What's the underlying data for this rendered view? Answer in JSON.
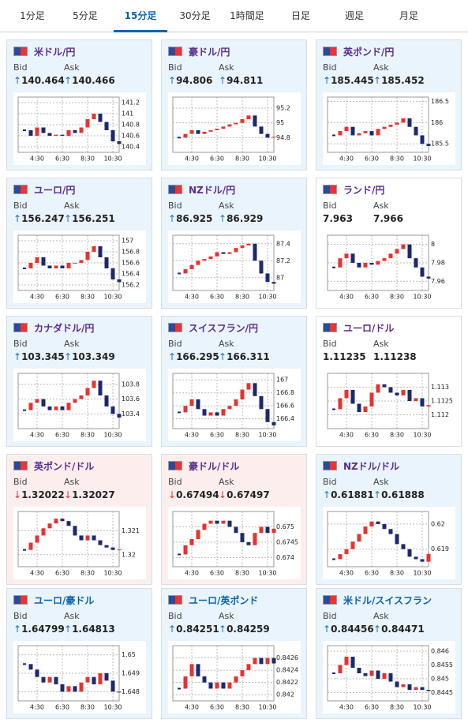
{
  "tabs": [
    "1分足",
    "5分足",
    "15分足",
    "30分足",
    "1時間足",
    "日足",
    "週足",
    "月足"
  ],
  "active_tab": 2,
  "panels": [
    {
      "name": "米ドル/円",
      "name_color": "#5a2d8c",
      "background": "#eaf4fc",
      "arrow": "↑",
      "arrow_color": "#1a6fc4",
      "bid_label": "Bid",
      "ask_label": "Ask",
      "bid": "140.464",
      "ask": "140.466",
      "chart": {
        "type": "candlestick",
        "closes": [
          140.7,
          140.6,
          140.75,
          140.65,
          140.6,
          140.62,
          140.6,
          140.7,
          140.65,
          140.75,
          140.9,
          141.0,
          140.85,
          140.7,
          140.5,
          140.45
        ],
        "ylim": [
          140.3,
          141.3
        ],
        "yticks": [
          141.2,
          141,
          140.8,
          140.6,
          140.4
        ],
        "xlim": [
          -1,
          15
        ],
        "xticks": [
          {
            "value": 2,
            "label": "4:30"
          },
          {
            "value": 6,
            "label": "6:30"
          },
          {
            "value": 10,
            "label": "8:30"
          },
          {
            "value": 14,
            "label": "10:30"
          }
        ]
      }
    },
    {
      "name": "豪ドル/円",
      "name_color": "#5a2d8c",
      "background": "#eaf4fc",
      "arrow": "↑",
      "arrow_color": "#1a6fc4",
      "bid_label": "Bid",
      "ask_label": "Ask",
      "bid": "94.806",
      "ask": "94.811",
      "chart": {
        "type": "candlestick",
        "closes": [
          94.8,
          94.85,
          94.9,
          94.85,
          94.88,
          94.9,
          94.92,
          94.95,
          94.98,
          95.0,
          95.05,
          95.1,
          94.95,
          94.85,
          94.8,
          94.81
        ],
        "ylim": [
          94.6,
          95.35
        ],
        "yticks": [
          95.2,
          95,
          94.8
        ],
        "xlim": [
          -1,
          15
        ],
        "xticks": [
          {
            "value": 2,
            "label": "4:30"
          },
          {
            "value": 6,
            "label": "6:30"
          },
          {
            "value": 10,
            "label": "8:30"
          },
          {
            "value": 14,
            "label": "10:30"
          }
        ]
      }
    },
    {
      "name": "英ポンド/円",
      "name_color": "#5a2d8c",
      "background": "#eaf4fc",
      "arrow": "↑",
      "arrow_color": "#1a6fc4",
      "bid_label": "Bid",
      "ask_label": "Ask",
      "bid": "185.445",
      "ask": "185.452",
      "chart": {
        "type": "candlestick",
        "closes": [
          185.7,
          185.8,
          185.9,
          185.7,
          185.75,
          185.8,
          185.7,
          185.85,
          185.9,
          185.95,
          186.0,
          186.1,
          185.9,
          185.7,
          185.5,
          185.45
        ],
        "ylim": [
          185.3,
          186.6
        ],
        "yticks": [
          186.5,
          186,
          185.5
        ],
        "xlim": [
          -1,
          15
        ],
        "xticks": [
          {
            "value": 2,
            "label": "4:30"
          },
          {
            "value": 6,
            "label": "6:30"
          },
          {
            "value": 10,
            "label": "8:30"
          },
          {
            "value": 14,
            "label": "10:30"
          }
        ]
      }
    },
    {
      "name": "ユーロ/円",
      "name_color": "#5a2d8c",
      "background": "#eaf4fc",
      "arrow": "↑",
      "arrow_color": "#1a6fc4",
      "bid_label": "Bid",
      "ask_label": "Ask",
      "bid": "156.247",
      "ask": "156.251",
      "chart": {
        "type": "candlestick",
        "closes": [
          156.5,
          156.6,
          156.7,
          156.55,
          156.5,
          156.55,
          156.5,
          156.6,
          156.6,
          156.65,
          156.8,
          156.9,
          156.7,
          156.5,
          156.3,
          156.25
        ],
        "ylim": [
          156.1,
          157.1
        ],
        "yticks": [
          157,
          156.8,
          156.6,
          156.4,
          156.2
        ],
        "xlim": [
          -1,
          15
        ],
        "xticks": [
          {
            "value": 2,
            "label": "4:30"
          },
          {
            "value": 6,
            "label": "6:30"
          },
          {
            "value": 10,
            "label": "8:30"
          },
          {
            "value": 14,
            "label": "10:30"
          }
        ]
      }
    },
    {
      "name": "NZドル/円",
      "name_color": "#5a2d8c",
      "background": "#eaf4fc",
      "arrow": "↑",
      "arrow_color": "#1a6fc4",
      "bid_label": "Bid",
      "ask_label": "Ask",
      "bid": "86.925",
      "ask": "86.929",
      "chart": {
        "type": "candlestick",
        "closes": [
          87.05,
          87.1,
          87.15,
          87.2,
          87.22,
          87.25,
          87.3,
          87.28,
          87.3,
          87.35,
          87.38,
          87.4,
          87.2,
          87.05,
          86.95,
          86.93
        ],
        "ylim": [
          86.85,
          87.5
        ],
        "yticks": [
          87.4,
          87.2,
          87
        ],
        "xlim": [
          -1,
          15
        ],
        "xticks": [
          {
            "value": 2,
            "label": "4:30"
          },
          {
            "value": 6,
            "label": "6:30"
          },
          {
            "value": 10,
            "label": "8:30"
          },
          {
            "value": 14,
            "label": "10:30"
          }
        ]
      }
    },
    {
      "name": "ランド/円",
      "name_color": "#5a2d8c",
      "background": "#ffffff",
      "bid_label": "Bid",
      "ask_label": "Ask",
      "bid": "7.963",
      "ask": "7.966",
      "chart": {
        "type": "candlestick",
        "closes": [
          7.975,
          7.985,
          7.99,
          7.98,
          7.975,
          7.98,
          7.978,
          7.982,
          7.985,
          7.99,
          7.995,
          8.0,
          7.985,
          7.975,
          7.965,
          7.963
        ],
        "ylim": [
          7.95,
          8.01
        ],
        "yticks": [
          8,
          7.98,
          7.96
        ],
        "xlim": [
          -1,
          15
        ],
        "xticks": [
          {
            "value": 2,
            "label": "4:30"
          },
          {
            "value": 6,
            "label": "6:30"
          },
          {
            "value": 10,
            "label": "8:30"
          },
          {
            "value": 14,
            "label": "10:30"
          }
        ]
      }
    },
    {
      "name": "カナダドル/円",
      "name_color": "#5a2d8c",
      "background": "#eaf4fc",
      "arrow": "↑",
      "arrow_color": "#1a6fc4",
      "bid_label": "Bid",
      "ask_label": "Ask",
      "bid": "103.345",
      "ask": "103.349",
      "chart": {
        "type": "candlestick",
        "closes": [
          103.45,
          103.55,
          103.6,
          103.5,
          103.45,
          103.5,
          103.45,
          103.55,
          103.6,
          103.65,
          103.75,
          103.85,
          103.65,
          103.5,
          103.4,
          103.35
        ],
        "ylim": [
          103.2,
          103.95
        ],
        "yticks": [
          103.8,
          103.6,
          103.4
        ],
        "xlim": [
          -1,
          15
        ],
        "xticks": [
          {
            "value": 2,
            "label": "4:30"
          },
          {
            "value": 6,
            "label": "6:30"
          },
          {
            "value": 10,
            "label": "8:30"
          },
          {
            "value": 14,
            "label": "10:30"
          }
        ]
      }
    },
    {
      "name": "スイスフラン/円",
      "name_color": "#5a2d8c",
      "background": "#eaf4fc",
      "arrow": "↑",
      "arrow_color": "#1a6fc4",
      "bid_label": "Bid",
      "ask_label": "Ask",
      "bid": "166.295",
      "ask": "166.311",
      "chart": {
        "type": "candlestick",
        "closes": [
          166.5,
          166.6,
          166.7,
          166.55,
          166.45,
          166.5,
          166.45,
          166.55,
          166.6,
          166.7,
          166.85,
          166.95,
          166.75,
          166.55,
          166.35,
          166.3
        ],
        "ylim": [
          166.25,
          167.1
        ],
        "yticks": [
          167,
          166.8,
          166.6,
          166.4
        ],
        "xlim": [
          -1,
          15
        ],
        "xticks": [
          {
            "value": 2,
            "label": "4:30"
          },
          {
            "value": 6,
            "label": "6:30"
          },
          {
            "value": 10,
            "label": "8:30"
          },
          {
            "value": 14,
            "label": "10:30"
          }
        ]
      }
    },
    {
      "name": "ユーロ/ドル",
      "name_color": "#5a2d8c",
      "background": "#ffffff",
      "bid_label": "Bid",
      "ask_label": "Ask",
      "bid": "1.11235",
      "ask": "1.11238",
      "chart": {
        "type": "candlestick",
        "closes": [
          1.1122,
          1.1126,
          1.1129,
          1.1124,
          1.1121,
          1.1123,
          1.1128,
          1.1131,
          1.113,
          1.1128,
          1.1127,
          1.1129,
          1.1125,
          1.1126,
          1.1123,
          1.11235
        ],
        "ylim": [
          1.1115,
          1.1135
        ],
        "yticks": [
          1.113,
          1.1125,
          1.112
        ],
        "xlim": [
          -1,
          15
        ],
        "xticks": [
          {
            "value": 2,
            "label": "4:30"
          },
          {
            "value": 6,
            "label": "6:30"
          },
          {
            "value": 10,
            "label": "8:30"
          },
          {
            "value": 14,
            "label": "10:30"
          }
        ]
      }
    },
    {
      "name": "英ポンド/ドル",
      "name_color": "#5a2d8c",
      "background": "#fdeeee",
      "arrow": "↓",
      "arrow_color": "#d9302b",
      "bid_label": "Bid",
      "ask_label": "Ask",
      "bid": "1.32022",
      "ask": "1.32027",
      "chart": {
        "type": "candlestick",
        "closes": [
          1.3202,
          1.3205,
          1.3208,
          1.3211,
          1.3213,
          1.3215,
          1.3214,
          1.3212,
          1.3208,
          1.3206,
          1.3208,
          1.3206,
          1.3204,
          1.3203,
          1.3202,
          1.32022
        ],
        "ylim": [
          1.3195,
          1.3218
        ],
        "yticks": [
          1.321,
          1.32
        ],
        "xlim": [
          -1,
          15
        ],
        "xticks": [
          {
            "value": 2,
            "label": "4:30"
          },
          {
            "value": 6,
            "label": "6:30"
          },
          {
            "value": 10,
            "label": "8:30"
          },
          {
            "value": 14,
            "label": "10:30"
          }
        ]
      }
    },
    {
      "name": "豪ドル/ドル",
      "name_color": "#5a2d8c",
      "background": "#fdeeee",
      "arrow": "↓",
      "arrow_color": "#d9302b",
      "bid_label": "Bid",
      "ask_label": "Ask",
      "bid": "0.67494",
      "ask": "0.67497",
      "chart": {
        "type": "candlestick",
        "closes": [
          0.6741,
          0.6744,
          0.6746,
          0.6749,
          0.6751,
          0.6752,
          0.6751,
          0.6752,
          0.675,
          0.6748,
          0.6745,
          0.6744,
          0.6748,
          0.675,
          0.6748,
          0.67494
        ],
        "ylim": [
          0.6737,
          0.6755
        ],
        "yticks": [
          0.675,
          0.6745,
          0.674
        ],
        "xlim": [
          -1,
          15
        ],
        "xticks": [
          {
            "value": 2,
            "label": "4:30"
          },
          {
            "value": 6,
            "label": "6:30"
          },
          {
            "value": 10,
            "label": "8:30"
          },
          {
            "value": 14,
            "label": "10:30"
          }
        ]
      }
    },
    {
      "name": "NZドル/ドル",
      "name_color": "#5a2d8c",
      "background": "#eaf4fc",
      "arrow": "↑",
      "arrow_color": "#1a6fc4",
      "bid_label": "Bid",
      "ask_label": "Ask",
      "bid": "0.61881",
      "ask": "0.61888",
      "chart": {
        "type": "candlestick",
        "closes": [
          0.6186,
          0.6188,
          0.619,
          0.6193,
          0.6196,
          0.6199,
          0.6201,
          0.62,
          0.6198,
          0.6196,
          0.6192,
          0.619,
          0.6187,
          0.6186,
          0.6185,
          0.61881
        ],
        "ylim": [
          0.6183,
          0.6205
        ],
        "yticks": [
          0.62,
          0.619
        ],
        "xlim": [
          -1,
          15
        ],
        "xticks": [
          {
            "value": 2,
            "label": "4:30"
          },
          {
            "value": 6,
            "label": "6:30"
          },
          {
            "value": 10,
            "label": "8:30"
          },
          {
            "value": 14,
            "label": "10:30"
          }
        ]
      }
    },
    {
      "name": "ユーロ/豪ドル",
      "name_color": "#0a63b0",
      "background": "#eaf4fc",
      "arrow": "↑",
      "arrow_color": "#1a6fc4",
      "bid_label": "Bid",
      "ask_label": "Ask",
      "bid": "1.64799",
      "ask": "1.64813",
      "chart": {
        "type": "candlestick",
        "closes": [
          1.6495,
          1.6492,
          1.6488,
          1.6485,
          1.6488,
          1.6484,
          1.648,
          1.6483,
          1.648,
          1.6485,
          1.6488,
          1.6484,
          1.649,
          1.6486,
          1.648,
          1.64799
        ],
        "ylim": [
          1.6475,
          1.6505
        ],
        "yticks": [
          1.65,
          1.649,
          1.648
        ],
        "xlim": [
          -1,
          15
        ],
        "xticks": [
          {
            "value": 2,
            "label": "4:30"
          },
          {
            "value": 6,
            "label": "6:30"
          },
          {
            "value": 10,
            "label": "8:30"
          },
          {
            "value": 14,
            "label": "10:30"
          }
        ]
      }
    },
    {
      "name": "ユーロ/英ポンド",
      "name_color": "#0a63b0",
      "background": "#eaf4fc",
      "arrow": "↑",
      "arrow_color": "#1a6fc4",
      "bid_label": "Bid",
      "ask_label": "Ask",
      "bid": "0.84251",
      "ask": "0.84259",
      "chart": {
        "type": "candlestick",
        "closes": [
          0.8421,
          0.8423,
          0.8425,
          0.8423,
          0.8422,
          0.8421,
          0.8422,
          0.8421,
          0.8422,
          0.8423,
          0.8424,
          0.8425,
          0.8426,
          0.8425,
          0.8426,
          0.84251
        ],
        "ylim": [
          0.8419,
          0.8428
        ],
        "yticks": [
          0.8426,
          0.8424,
          0.8422,
          0.842
        ],
        "xlim": [
          -1,
          15
        ],
        "xticks": [
          {
            "value": 2,
            "label": "4:30"
          },
          {
            "value": 6,
            "label": "6:30"
          },
          {
            "value": 10,
            "label": "8:30"
          },
          {
            "value": 14,
            "label": "10:30"
          }
        ]
      }
    },
    {
      "name": "米ドル/スイスフラン",
      "name_color": "#0a63b0",
      "background": "#eaf4fc",
      "arrow": "↑",
      "arrow_color": "#1a6fc4",
      "bid_label": "Bid",
      "ask_label": "Ask",
      "bid": "0.84456",
      "ask": "0.84471",
      "chart": {
        "type": "candlestick",
        "closes": [
          0.8452,
          0.8455,
          0.8458,
          0.8454,
          0.8452,
          0.8451,
          0.8453,
          0.845,
          0.8452,
          0.8449,
          0.8447,
          0.8448,
          0.8446,
          0.8447,
          0.8446,
          0.84456
        ],
        "ylim": [
          0.8442,
          0.8462
        ],
        "yticks": [
          0.846,
          0.8455,
          0.845,
          0.8445
        ],
        "xlim": [
          -1,
          15
        ],
        "xticks": [
          {
            "value": 2,
            "label": "4:30"
          },
          {
            "value": 6,
            "label": "6:30"
          },
          {
            "value": 10,
            "label": "8:30"
          },
          {
            "value": 14,
            "label": "10:30"
          }
        ]
      }
    }
  ]
}
